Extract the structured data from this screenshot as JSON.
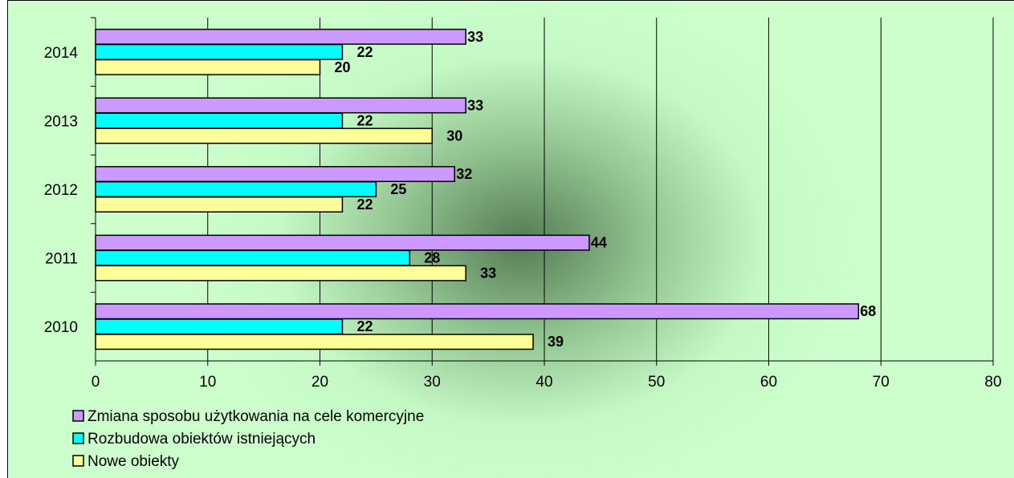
{
  "chart_data": {
    "type": "bar",
    "orientation": "horizontal",
    "categories": [
      "2010",
      "2011",
      "2012",
      "2013",
      "2014"
    ],
    "series": [
      {
        "name": "Zmiana sposobu użytkowania na cele komercyjne",
        "color": "#cc99ff",
        "values": [
          68,
          44,
          32,
          33,
          33
        ]
      },
      {
        "name": "Rozbudowa obiektów istniejących",
        "color": "#00ffff",
        "values": [
          22,
          28,
          25,
          22,
          22
        ]
      },
      {
        "name": "Nowe obiekty",
        "color": "#ffff99",
        "values": [
          39,
          33,
          22,
          30,
          20
        ]
      }
    ],
    "x_ticks": [
      "0",
      "10",
      "20",
      "30",
      "40",
      "50",
      "60",
      "70",
      "80"
    ],
    "xlim": [
      0,
      80
    ],
    "grid": "vertical",
    "legend_position": "bottom-left",
    "background_color": "#ccffcc",
    "gridline_color": "#000000",
    "title": "",
    "xlabel": "",
    "ylabel": ""
  }
}
